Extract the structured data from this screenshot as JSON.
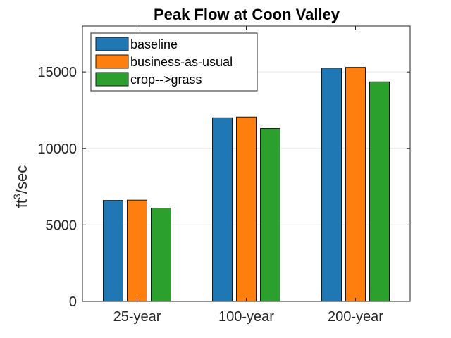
{
  "chart_data": {
    "type": "bar",
    "title": "Peak Flow at Coon Valley",
    "ylabel_base": "ft",
    "ylabel_sup": "3",
    "ylabel_rest": "/sec",
    "xlabel": "",
    "categories": [
      "25-year",
      "100-year",
      "200-year"
    ],
    "series": [
      {
        "name": "baseline",
        "color": "#1f77b4",
        "values": [
          6600,
          12000,
          15250
        ]
      },
      {
        "name": "business-as-usual",
        "color": "#ff7f0e",
        "values": [
          6620,
          12050,
          15300
        ]
      },
      {
        "name": "crop-->grass",
        "color": "#2ca02c",
        "values": [
          6100,
          11300,
          14350
        ]
      }
    ],
    "ylim": [
      0,
      18000
    ],
    "yticks": [
      0,
      5000,
      10000,
      15000
    ],
    "ytick_labels": [
      "0",
      "5000",
      "10000",
      "15000"
    ],
    "grid": true,
    "legend_position": "top-left"
  }
}
